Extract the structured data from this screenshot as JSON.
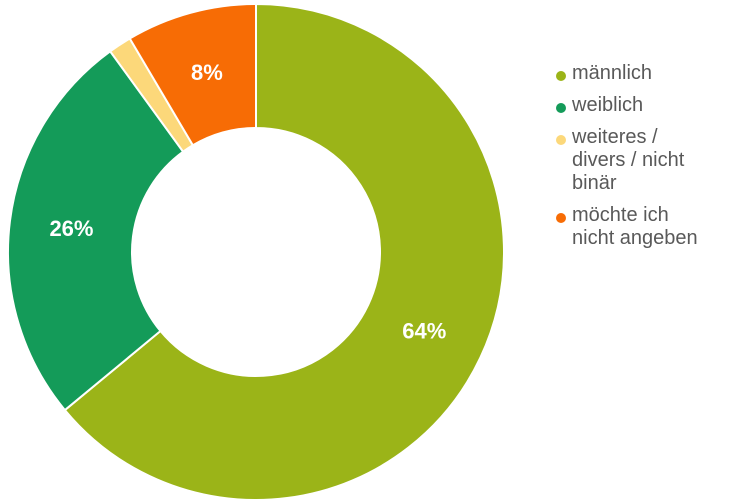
{
  "chart_data": {
    "type": "pie",
    "variant": "donut",
    "title": "",
    "legend_position": "right",
    "categories": [
      "männlich",
      "weiblich",
      "weiteres / divers / nicht binär",
      "möchte ich nicht angeben"
    ],
    "values": [
      64,
      26,
      1.5,
      8.5
    ],
    "data_labels": [
      "64%",
      "26%",
      "",
      "8%"
    ],
    "colors": [
      "#9BB418",
      "#149B59",
      "#FCD87A",
      "#F76C05"
    ]
  },
  "legend": {
    "items": [
      {
        "lines": [
          "männlich"
        ],
        "color": "#9BB418"
      },
      {
        "lines": [
          "weiblich"
        ],
        "color": "#149B59"
      },
      {
        "lines": [
          "weiteres /",
          "divers / nicht",
          "binär"
        ],
        "color": "#FCD87A"
      },
      {
        "lines": [
          "möchte ich",
          "nicht angeben"
        ],
        "color": "#F76C05"
      }
    ]
  }
}
